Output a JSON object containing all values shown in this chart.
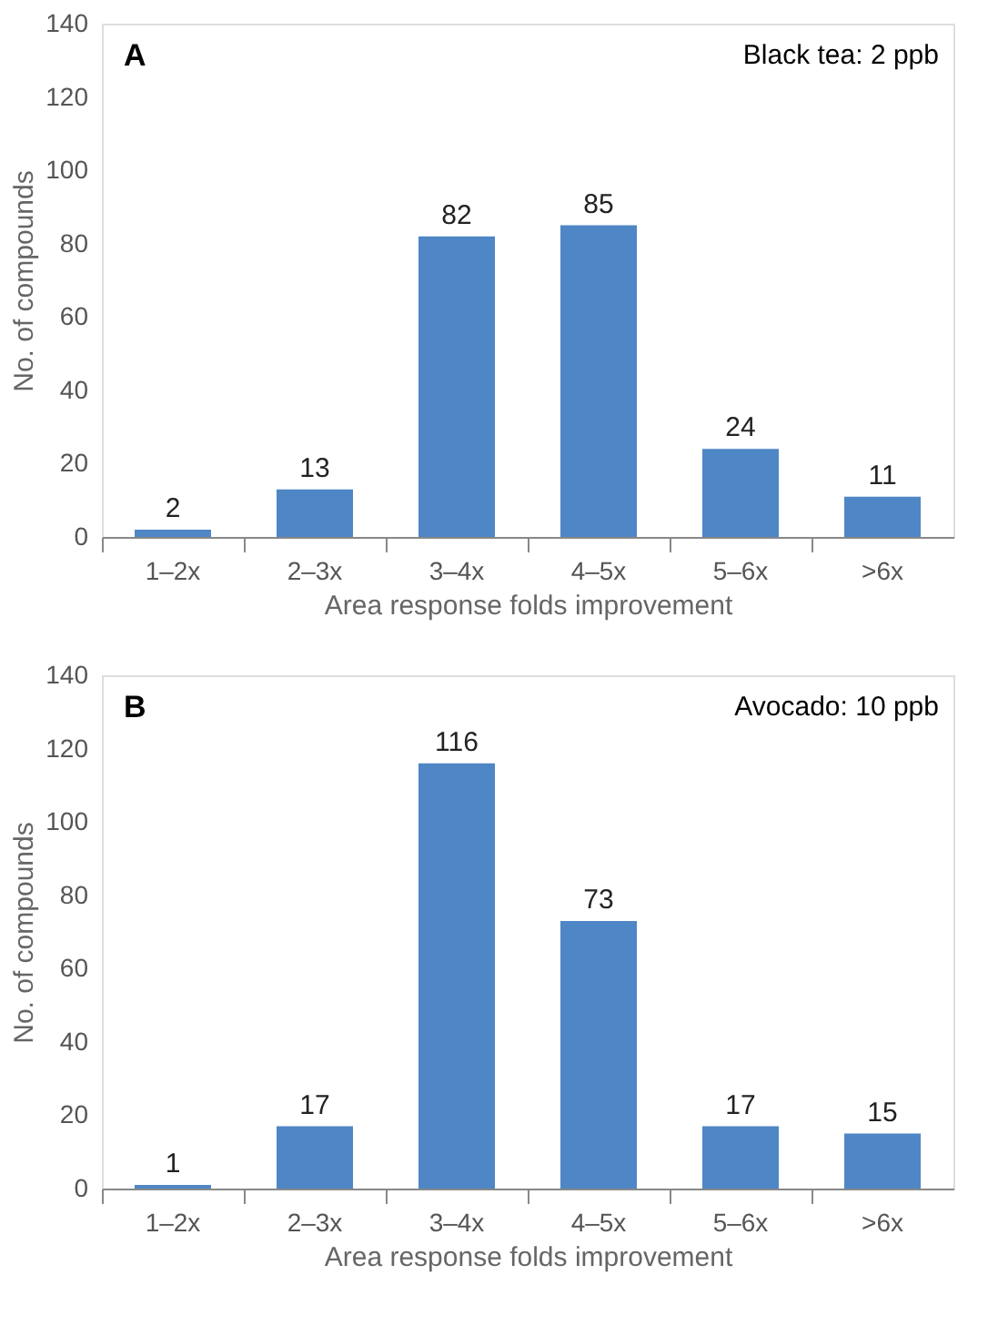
{
  "chart_data": [
    {
      "type": "bar",
      "title": "A",
      "annotations": [
        "Black tea: 2 ppb"
      ],
      "categories": [
        "1–2x",
        "2–3x",
        "3–4x",
        "4–5x",
        "5–6x",
        ">6x"
      ],
      "values": [
        2,
        13,
        82,
        85,
        24,
        11
      ],
      "color": "#4f86c6",
      "data_labels": true,
      "ylim": [
        0,
        140
      ],
      "yticks": [
        0,
        20,
        40,
        60,
        80,
        100,
        120,
        140
      ],
      "xlabel": "Area response folds improvement",
      "ylabel": "No. of compounds",
      "grid": false
    },
    {
      "type": "bar",
      "title": "B",
      "annotations": [
        "Avocado: 10 ppb"
      ],
      "categories": [
        "1–2x",
        "2–3x",
        "3–4x",
        "4–5x",
        "5–6x",
        ">6x"
      ],
      "values": [
        1,
        17,
        116,
        73,
        17,
        15
      ],
      "color": "#4f86c6",
      "data_labels": true,
      "ylim": [
        0,
        140
      ],
      "yticks": [
        0,
        20,
        40,
        60,
        80,
        100,
        120,
        140
      ],
      "xlabel": "Area response folds improvement",
      "ylabel": "No. of compounds",
      "grid": false
    }
  ]
}
